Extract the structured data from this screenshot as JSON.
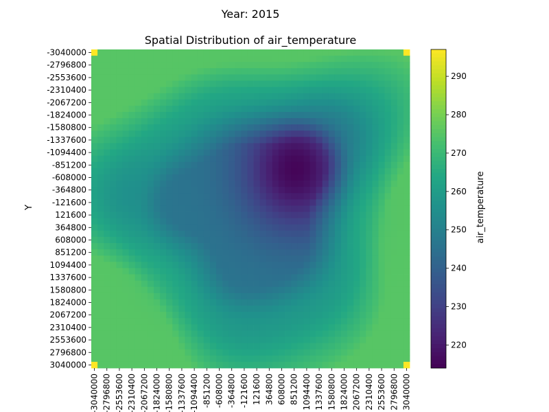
{
  "figure": {
    "suptitle": "Year: 2015"
  },
  "chart_data": {
    "type": "heatmap",
    "title": "Spatial Distribution of air_temperature",
    "xlabel": "",
    "ylabel": "Y",
    "colorbar_label": "air_temperature",
    "colormap": "viridis",
    "vmin": 214,
    "vmax": 297,
    "colorbar_ticks": [
      220,
      230,
      240,
      250,
      260,
      270,
      280,
      290
    ],
    "y_tick_labels": [
      "-3040000",
      "-2796800",
      "-2553600",
      "-2310400",
      "-2067200",
      "-1824000",
      "-1580800",
      "-1337600",
      "-1094400",
      "-851200",
      "-608000",
      "-364800",
      "-121600",
      "121600",
      "364800",
      "608000",
      "851200",
      "1094400",
      "1337600",
      "1580800",
      "1824000",
      "2067200",
      "2310400",
      "2553600",
      "2796800",
      "3040000"
    ],
    "x_tick_labels": [
      "-3040000",
      "-2796800",
      "-2553600",
      "-2310400",
      "-2067200",
      "-1824000",
      "-1580800",
      "-1337600",
      "-1094400",
      "-851200",
      "-608000",
      "-364800",
      "-121600",
      "121600",
      "364800",
      "608000",
      "851200",
      "1094400",
      "1337600",
      "1580800",
      "1824000",
      "2067200",
      "2310400",
      "2553600",
      "2796800",
      "3040000"
    ],
    "grid_cells_per_axis": 51,
    "corner_value": 297,
    "field_model": {
      "outer_value": 275,
      "core_value": 215,
      "core_center": [
        0.74,
        0.22
      ],
      "outer_ring_value": 262
    },
    "grid": false
  }
}
